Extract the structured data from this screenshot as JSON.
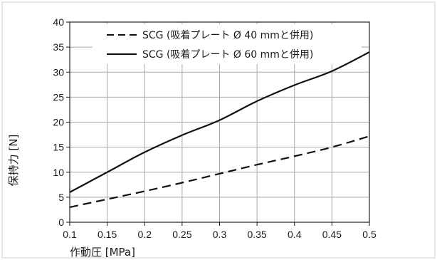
{
  "chart_data": {
    "type": "line",
    "title": "",
    "xlabel": "作動圧 [MPa]",
    "ylabel": "保持力 [N]",
    "xlim": [
      0.1,
      0.5
    ],
    "ylim": [
      0,
      40
    ],
    "x_ticks": [
      "0.1",
      "0.15",
      "0.2",
      "0.25",
      "0.3",
      "0.35",
      "0.4",
      "0.45",
      "0.5"
    ],
    "y_ticks": [
      "0",
      "5",
      "10",
      "15",
      "20",
      "25",
      "30",
      "35",
      "40"
    ],
    "grid": true,
    "legend_position": "top",
    "series": [
      {
        "name": "SCG (吸着プレート Ø 40 mmと併用)",
        "style": "dashed",
        "color": "#111111",
        "x": [
          0.1,
          0.15,
          0.2,
          0.25,
          0.3,
          0.35,
          0.4,
          0.45,
          0.5
        ],
        "values": [
          3.0,
          4.6,
          6.2,
          7.9,
          9.7,
          11.5,
          13.2,
          15.0,
          17.2
        ]
      },
      {
        "name": "SCG (吸着プレート Ø 60 mmと併用)",
        "style": "solid",
        "color": "#111111",
        "x": [
          0.1,
          0.15,
          0.2,
          0.25,
          0.3,
          0.35,
          0.4,
          0.45,
          0.5
        ],
        "values": [
          6.0,
          10.0,
          14.0,
          17.4,
          20.4,
          24.2,
          27.4,
          30.2,
          34.0
        ]
      }
    ]
  }
}
